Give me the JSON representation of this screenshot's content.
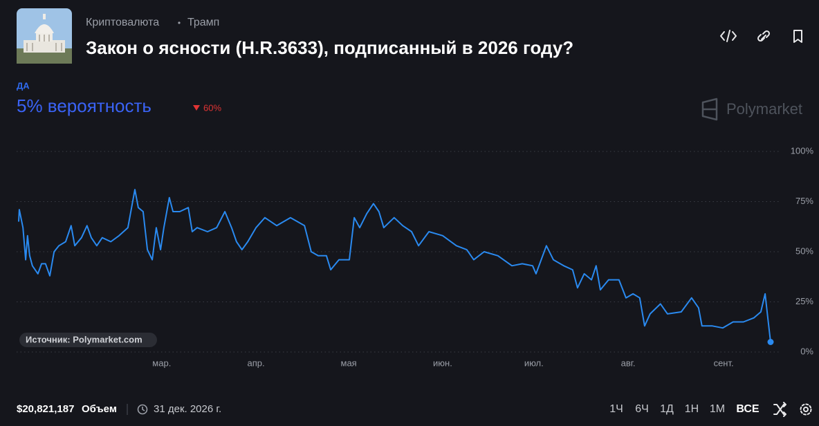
{
  "header": {
    "category": "Криптовалюта",
    "tag": "Трамп",
    "title": "Закон о ясности (H.R.3633), подписанный в 2026 году?"
  },
  "outcome": {
    "name": "ДА",
    "probability": "5% вероятность",
    "change": "60%"
  },
  "brand": "Polymarket",
  "source": "Источник: Polymarket.com",
  "footer": {
    "volume": "$20,821,187",
    "volume_label": "Объем",
    "end_date": "31 дек. 2026 г.",
    "ranges": [
      "1Ч",
      "6Ч",
      "1Д",
      "1Н",
      "1М",
      "ВСЕ"
    ],
    "active_range": "ВСЕ"
  },
  "chart_data": {
    "type": "line",
    "color": "#2a8af0",
    "x": [
      0,
      0.2,
      1.4,
      2.3,
      2.9,
      3.6,
      4.5,
      6.3,
      7.5,
      8.8,
      10.2,
      11.6,
      13.2,
      15.4,
      17.2,
      18.4,
      20.6,
      22.4,
      23.8,
      25.6,
      27.4,
      30.2,
      32.9,
      35.8,
      38.1,
      39.2,
      40.8,
      42.2,
      43.8,
      45.1,
      46.5,
      47.6,
      49.4,
      50.6,
      52.8,
      55.6,
      56.9,
      58.5,
      61.9,
      64.9,
      67.6,
      69.8,
      71.4,
      73.2,
      75.1,
      77.8,
      80.7,
      84.6,
      89.1,
      93.7,
      95.9,
      98.2,
      100.9,
      102.3,
      105.0,
      108.4,
      110.0,
      111.8,
      114.1,
      116.3,
      118.1,
      119.7,
      123.1,
      125.9,
      128.8,
      131.1,
      134.5,
      139.0,
      143.5,
      146.9,
      149.2,
      152.6,
      157.1,
      161.7,
      165.1,
      168.5,
      169.6,
      173.0,
      175.3,
      178.7,
      181.6,
      183.2,
      185.4,
      187.8,
      189.3,
      190.7,
      193.4,
      196.8,
      199.1,
      201.4,
      203.6,
      205.2,
      207.0,
      210.4,
      212.7,
      217.2,
      220.6,
      222.9,
      224.0,
      227.4,
      230.8,
      234.2,
      237.6,
      241.0,
      243.3,
      244.7,
      245.6,
      246.5
    ],
    "values": [
      65,
      71,
      62,
      46,
      58,
      48,
      43,
      39,
      44,
      44,
      38,
      50,
      53,
      55,
      63,
      53,
      57,
      63,
      57,
      53,
      57,
      55,
      58,
      62,
      81,
      72,
      70,
      51,
      46,
      62,
      51,
      62,
      77,
      70,
      70,
      72,
      60,
      62,
      60,
      62,
      70,
      62,
      55,
      51,
      55,
      62,
      67,
      63,
      67,
      63,
      50,
      48,
      48,
      41,
      46,
      46,
      67,
      62,
      69,
      74,
      70,
      62,
      67,
      63,
      60,
      53,
      60,
      58,
      53,
      51,
      46,
      50,
      48,
      43,
      44,
      43,
      39,
      53,
      46,
      43,
      41,
      32,
      39,
      36,
      43,
      31,
      36,
      36,
      27,
      29,
      27,
      13,
      19,
      24,
      19,
      20,
      27,
      22,
      13,
      13,
      12,
      15,
      15,
      17,
      20,
      29,
      17,
      5
    ],
    "xlim": [
      0,
      246.5
    ],
    "xticks": [
      {
        "value": 46.9,
        "label": "мар."
      },
      {
        "value": 77.8,
        "label": "апр."
      },
      {
        "value": 108.2,
        "label": "мая"
      },
      {
        "value": 139.0,
        "label": "июн."
      },
      {
        "value": 168.9,
        "label": "июл."
      },
      {
        "value": 199.8,
        "label": "авг."
      },
      {
        "value": 231.1,
        "label": "сент."
      }
    ],
    "ylim": [
      0,
      100
    ],
    "yticks": [
      {
        "value": 0,
        "label": "0%"
      },
      {
        "value": 25,
        "label": "25%"
      },
      {
        "value": 50,
        "label": "50%"
      },
      {
        "value": 75,
        "label": "75%"
      },
      {
        "value": 100,
        "label": "100%"
      }
    ],
    "grid": true
  }
}
